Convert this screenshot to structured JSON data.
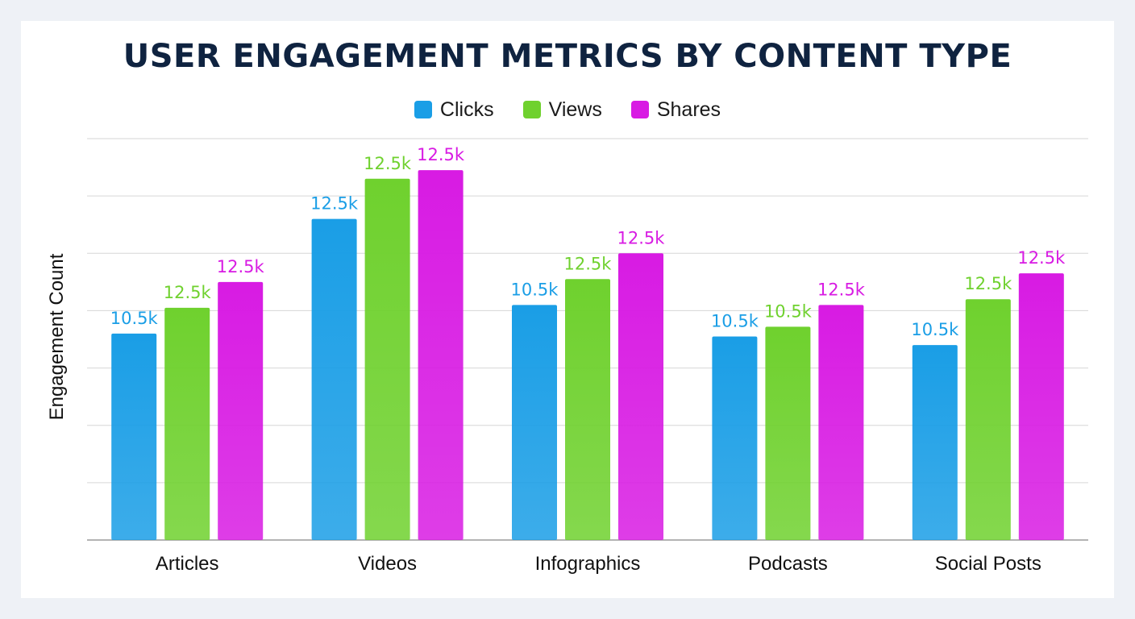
{
  "chart_data": {
    "type": "bar",
    "title": "USER ENGAGEMENT METRICS BY CONTENT TYPE",
    "xlabel": "",
    "ylabel": "Engagement Count",
    "ylim": [
      0,
      7
    ],
    "grid": true,
    "legend_position": "top-center",
    "categories": [
      "Articles",
      "Videos",
      "Infographics",
      "Podcasts",
      "Social Posts"
    ],
    "series": [
      {
        "name": "Clicks",
        "color": "#1a9ee6",
        "values": [
          3.6,
          5.6,
          4.1,
          3.55,
          3.4
        ],
        "labels": [
          "10.5k",
          "12.5k",
          "10.5k",
          "10.5k",
          "10.5k"
        ]
      },
      {
        "name": "Views",
        "color": "#6fd12e",
        "values": [
          4.05,
          6.3,
          4.55,
          3.72,
          4.2
        ],
        "labels": [
          "12.5k",
          "12.5k",
          "12.5k",
          "10.5k",
          "12.5k"
        ]
      },
      {
        "name": "Shares",
        "color": "#d81be3",
        "values": [
          4.5,
          6.45,
          5.0,
          4.1,
          4.65
        ],
        "labels": [
          "12.5k",
          "12.5k",
          "12.5k",
          "12.5k",
          "12.5k"
        ]
      }
    ]
  }
}
